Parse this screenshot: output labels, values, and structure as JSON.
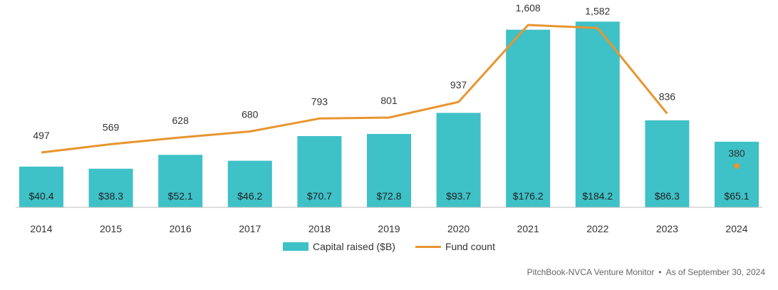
{
  "chart_data": {
    "type": "bar",
    "categories": [
      "2014",
      "2015",
      "2016",
      "2017",
      "2018",
      "2019",
      "2020",
      "2021",
      "2022",
      "2023",
      "2024"
    ],
    "series": [
      {
        "name": "Capital raised ($B)",
        "type": "bar",
        "values": [
          40.4,
          38.3,
          52.1,
          46.2,
          70.7,
          72.8,
          93.7,
          176.2,
          184.2,
          86.3,
          65.1
        ],
        "labels": [
          "$40.4",
          "$38.3",
          "$52.1",
          "$46.2",
          "$70.7",
          "$72.8",
          "$93.7",
          "$176.2",
          "$184.2",
          "$86.3",
          "$65.1"
        ],
        "color": "#3ec1c7"
      },
      {
        "name": "Fund count",
        "type": "line",
        "values": [
          497,
          569,
          628,
          680,
          793,
          801,
          937,
          1608,
          1582,
          836,
          380
        ],
        "labels": [
          "497",
          "569",
          "628",
          "680",
          "793",
          "801",
          "937",
          "1,608",
          "1,582",
          "836",
          "380"
        ],
        "color": "#e8952f",
        "note": "2024 shown as separate point"
      }
    ],
    "title": "",
    "xlabel": "",
    "ylabel": "",
    "grid": false,
    "legend_position": "bottom-center"
  },
  "source": {
    "text": "PitchBook-NVCA Venture Monitor",
    "separator": "•",
    "date": "As of September 30, 2024"
  }
}
